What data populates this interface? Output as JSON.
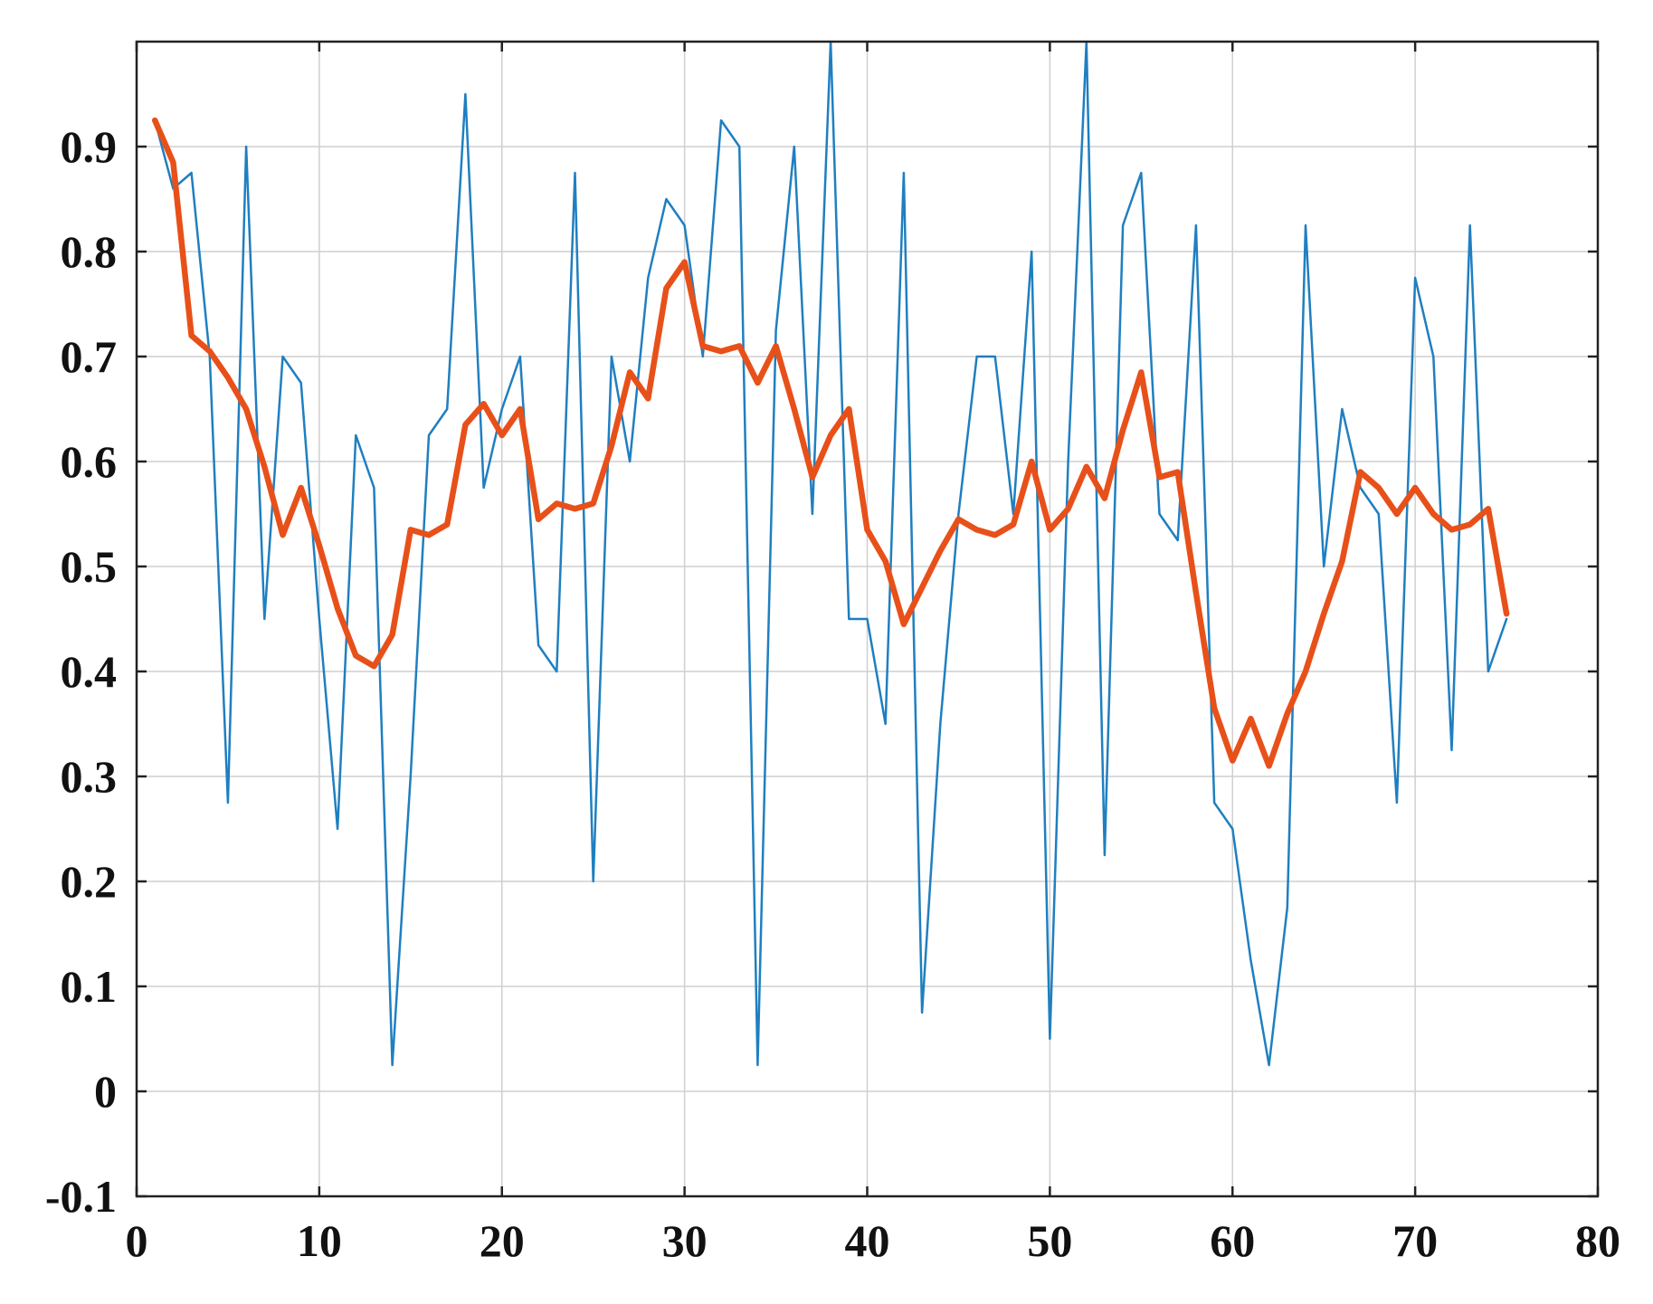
{
  "chart_data": {
    "type": "line",
    "title": "",
    "xlabel": "",
    "ylabel": "",
    "xlim": [
      0,
      80
    ],
    "ylim": [
      -0.1,
      1.0
    ],
    "xticks": [
      0,
      10,
      20,
      30,
      40,
      50,
      60,
      70,
      80
    ],
    "xtick_labels": [
      "0",
      "10",
      "20",
      "30",
      "40",
      "50",
      "60",
      "70",
      "80"
    ],
    "yticks": [
      -0.1,
      0,
      0.1,
      0.2,
      0.3,
      0.4,
      0.5,
      0.6,
      0.7,
      0.8,
      0.9
    ],
    "ytick_labels": [
      "-0.1",
      "0",
      "0.1",
      "0.2",
      "0.3",
      "0.4",
      "0.5",
      "0.6",
      "0.7",
      "0.8",
      "0.9"
    ],
    "grid": true,
    "legend": "none",
    "series": [
      {
        "color": "#1f7fc0",
        "line_width": "thin",
        "x": [
          1,
          2,
          3,
          4,
          5,
          6,
          7,
          8,
          9,
          10,
          11,
          12,
          13,
          14,
          15,
          16,
          17,
          18,
          19,
          20,
          21,
          22,
          23,
          24,
          25,
          26,
          27,
          28,
          29,
          30,
          31,
          32,
          33,
          34,
          35,
          36,
          37,
          38,
          39,
          40,
          41,
          42,
          43,
          44,
          45,
          46,
          47,
          48,
          49,
          50,
          51,
          52,
          53,
          54,
          55,
          56,
          57,
          58,
          59,
          60,
          61,
          62,
          63,
          64,
          65,
          66,
          67,
          68,
          69,
          70,
          71,
          72,
          73,
          74,
          75
        ],
        "values": [
          0.925,
          0.86,
          0.875,
          0.7,
          0.275,
          0.9,
          0.45,
          0.7,
          0.675,
          0.45,
          0.25,
          0.625,
          0.575,
          0.025,
          0.3,
          0.625,
          0.65,
          0.95,
          0.575,
          0.65,
          0.7,
          0.425,
          0.4,
          0.875,
          0.2,
          0.7,
          0.6,
          0.775,
          0.85,
          0.825,
          0.7,
          0.925,
          0.9,
          0.025,
          0.725,
          0.9,
          0.55,
          1.0,
          0.45,
          0.45,
          0.35,
          0.875,
          0.075,
          0.35,
          0.55,
          0.7,
          0.7,
          0.55,
          0.8,
          0.05,
          0.6,
          1.0,
          0.225,
          0.825,
          0.875,
          0.55,
          0.525,
          0.825,
          0.275,
          0.25,
          0.125,
          0.025,
          0.175,
          0.825,
          0.5,
          0.65,
          0.575,
          0.55,
          0.275,
          0.775,
          0.7,
          0.325,
          0.825,
          0.4,
          0.45
        ]
      },
      {
        "color": "#e8501a",
        "line_width": "thick",
        "x": [
          1,
          2,
          3,
          4,
          5,
          6,
          7,
          8,
          9,
          10,
          11,
          12,
          13,
          14,
          15,
          16,
          17,
          18,
          19,
          20,
          21,
          22,
          23,
          24,
          25,
          26,
          27,
          28,
          29,
          30,
          31,
          32,
          33,
          34,
          35,
          36,
          37,
          38,
          39,
          40,
          41,
          42,
          43,
          44,
          45,
          46,
          47,
          48,
          49,
          50,
          51,
          52,
          53,
          54,
          55,
          56,
          57,
          58,
          59,
          60,
          61,
          62,
          63,
          64,
          65,
          66,
          67,
          68,
          69,
          70,
          71,
          72,
          73,
          74,
          75
        ],
        "values": [
          0.925,
          0.885,
          0.72,
          0.705,
          0.68,
          0.65,
          0.595,
          0.53,
          0.575,
          0.52,
          0.46,
          0.415,
          0.405,
          0.435,
          0.535,
          0.53,
          0.54,
          0.635,
          0.655,
          0.625,
          0.65,
          0.545,
          0.56,
          0.555,
          0.56,
          0.615,
          0.685,
          0.66,
          0.765,
          0.79,
          0.71,
          0.705,
          0.71,
          0.675,
          0.71,
          0.65,
          0.585,
          0.625,
          0.65,
          0.535,
          0.505,
          0.445,
          0.48,
          0.515,
          0.545,
          0.535,
          0.53,
          0.54,
          0.6,
          0.535,
          0.555,
          0.595,
          0.565,
          0.63,
          0.685,
          0.585,
          0.59,
          0.475,
          0.365,
          0.315,
          0.355,
          0.31,
          0.36,
          0.4,
          0.455,
          0.505,
          0.59,
          0.575,
          0.55,
          0.575,
          0.55,
          0.535,
          0.54,
          0.555,
          0.455
        ]
      }
    ]
  }
}
